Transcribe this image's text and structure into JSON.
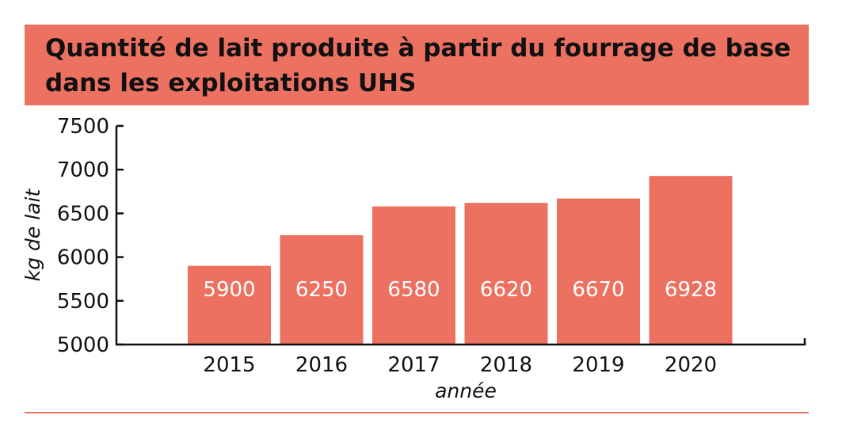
{
  "header": {
    "title": "Quantité de lait produite à partir du fourrage de base dans les exploitations UHS"
  },
  "colors": {
    "accent": "#ed7161",
    "bar_label": "#ffffff",
    "axis": "#111111"
  },
  "chart_data": {
    "type": "bar",
    "title": "Quantité de lait produite à partir du fourrage de base dans les exploitations UHS",
    "categories": [
      "2015",
      "2016",
      "2017",
      "2018",
      "2019",
      "2020"
    ],
    "values": [
      5900,
      6250,
      6580,
      6620,
      6670,
      6928
    ],
    "data_labels": [
      "5900",
      "6250",
      "6580",
      "6620",
      "6670",
      "6928"
    ],
    "xlabel": "année",
    "ylabel": "kg de lait",
    "ylim": [
      5000,
      7500
    ],
    "yticks": [
      5000,
      5500,
      6000,
      6500,
      7000,
      7500
    ],
    "ytick_labels": [
      "5000",
      "5500",
      "6000",
      "6500",
      "7000",
      "7500"
    ],
    "grid": false,
    "legend": "none"
  }
}
